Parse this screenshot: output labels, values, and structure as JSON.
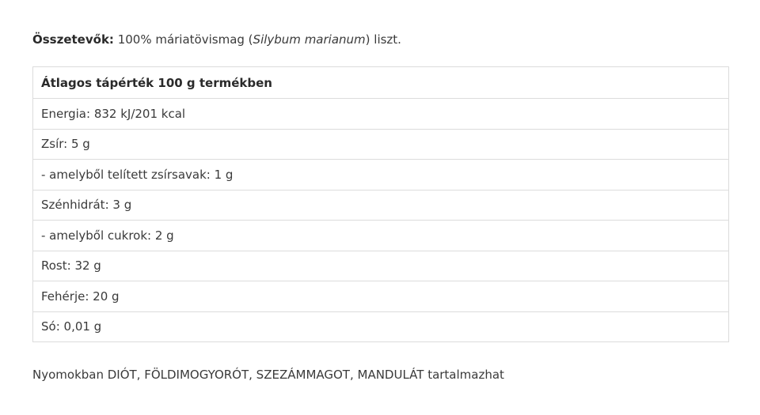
{
  "ingredients": {
    "label": "Összetevők:",
    "text_before": " 100% máriatövismag (",
    "latin": "Silybum marianum",
    "text_after": ") liszt."
  },
  "table": {
    "header": "Átlagos tápérték 100 g termékben",
    "rows": [
      "Energia: 832 kJ/201 kcal",
      "Zsír: 5 g",
      "- amelyből telített zsírsavak: 1 g",
      "Szénhidrát: 3 g",
      "- amelyből cukrok: 2 g",
      "Rost: 32 g",
      "Fehérje: 20 g",
      "Só: 0,01 g"
    ]
  },
  "trace_note": "Nyomokban DIÓT, FÖLDIMOGYORÓT, SZEZÁMMAGOT, MANDULÁT tartalmazhat"
}
